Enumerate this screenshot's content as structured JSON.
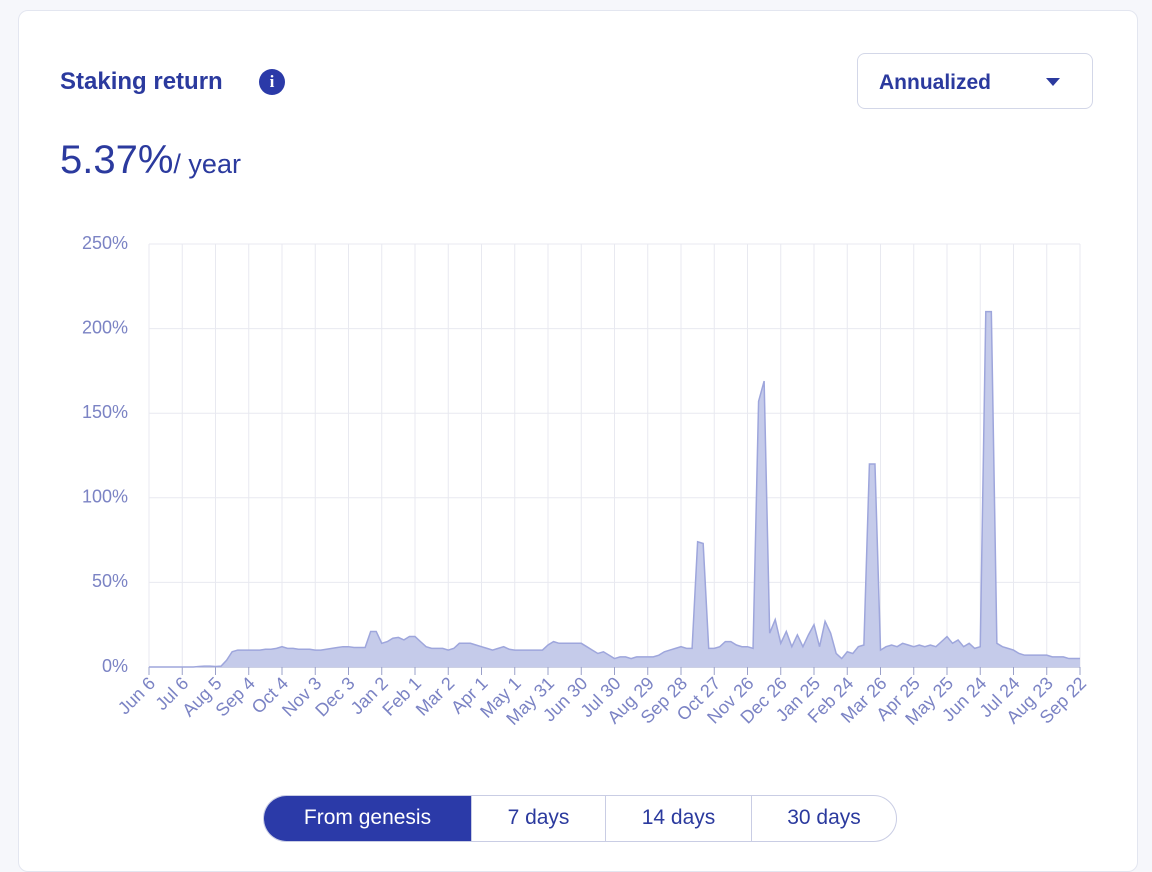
{
  "header": {
    "title": "Staking return",
    "dropdown": "Annualized"
  },
  "summary": {
    "value": "5.37%",
    "unit": "/ year"
  },
  "chart_data": {
    "type": "area",
    "categories": [
      "Jun 6",
      null,
      null,
      null,
      null,
      null,
      "Jul 6",
      null,
      null,
      null,
      null,
      null,
      "Aug 5",
      null,
      null,
      null,
      null,
      null,
      "Sep 4",
      null,
      null,
      null,
      null,
      null,
      "Oct 4",
      null,
      null,
      null,
      null,
      null,
      "Nov 3",
      null,
      null,
      null,
      null,
      null,
      "Dec 3",
      null,
      null,
      null,
      null,
      null,
      "Jan 2",
      null,
      null,
      null,
      null,
      null,
      "Feb 1",
      null,
      null,
      null,
      null,
      null,
      "Mar 2",
      null,
      null,
      null,
      null,
      null,
      "Apr 1",
      null,
      null,
      null,
      null,
      null,
      "May 1",
      null,
      null,
      null,
      null,
      null,
      "May 31",
      null,
      null,
      null,
      null,
      null,
      "Jun 30",
      null,
      null,
      null,
      null,
      null,
      "Jul 30",
      null,
      null,
      null,
      null,
      null,
      "Aug 29",
      null,
      null,
      null,
      null,
      null,
      "Sep 28",
      null,
      null,
      null,
      null,
      null,
      "Oct 27",
      null,
      null,
      null,
      null,
      null,
      "Nov 26",
      null,
      null,
      null,
      null,
      null,
      "Dec 26",
      null,
      null,
      null,
      null,
      null,
      "Jan 25",
      null,
      null,
      null,
      null,
      null,
      "Feb 24",
      null,
      null,
      null,
      null,
      null,
      "Mar 26",
      null,
      null,
      null,
      null,
      null,
      "Apr 25",
      null,
      null,
      null,
      null,
      null,
      "May 25",
      null,
      null,
      null,
      null,
      null,
      "Jun 24",
      null,
      null,
      null,
      null,
      null,
      "Jul 24",
      null,
      null,
      null,
      null,
      null,
      "Aug 23",
      null,
      null,
      null,
      null,
      null,
      "Sep 22"
    ],
    "series": [
      {
        "color": "#c5cbea",
        "values": [
          0,
          0,
          0,
          0,
          0,
          0,
          0,
          0,
          0,
          0.3,
          0.5,
          0.5,
          0.3,
          0.5,
          4,
          9,
          10,
          10,
          10,
          10,
          10,
          10.5,
          10.5,
          11,
          12,
          11,
          11,
          10.5,
          10.5,
          10.5,
          10,
          10,
          10.5,
          11,
          11.5,
          12,
          12,
          11.5,
          11.5,
          11.5,
          21,
          21,
          14,
          15,
          17,
          17.5,
          16,
          18,
          18,
          15,
          12,
          11,
          11,
          11,
          10,
          11,
          14,
          14,
          14,
          13,
          12,
          11,
          10,
          11,
          12,
          10.5,
          10,
          10,
          10,
          10,
          10,
          10,
          13,
          15,
          14,
          14,
          14,
          14,
          14,
          12,
          10,
          8,
          9,
          7,
          5,
          6,
          6,
          5,
          6,
          6,
          6,
          6,
          7,
          9,
          10,
          11,
          12,
          11,
          11,
          74,
          73,
          11,
          11,
          12,
          15,
          15,
          13,
          12,
          12,
          11,
          157,
          169,
          20,
          28,
          14,
          21,
          12,
          19,
          12,
          19,
          25,
          12,
          27,
          20,
          8,
          5,
          9,
          8,
          12,
          13,
          120,
          120,
          10,
          12,
          13,
          12,
          14,
          13,
          12,
          13,
          12,
          13,
          12,
          15,
          18,
          14,
          16,
          12,
          14,
          11,
          12,
          210,
          210,
          14,
          12,
          11,
          10,
          8,
          7,
          7,
          7,
          7,
          7,
          6,
          6,
          6,
          5,
          5,
          5
        ]
      }
    ],
    "ylim": [
      0,
      250
    ],
    "yticks": [
      {
        "value": 0,
        "label": "0%"
      },
      {
        "value": 50,
        "label": "50%"
      },
      {
        "value": 100,
        "label": "100%"
      },
      {
        "value": 150,
        "label": "150%"
      },
      {
        "value": 200,
        "label": "200%"
      },
      {
        "value": 250,
        "label": "250%"
      }
    ],
    "grid": true
  },
  "tabs": [
    "From genesis",
    "7 days",
    "14 days",
    "30 days"
  ]
}
